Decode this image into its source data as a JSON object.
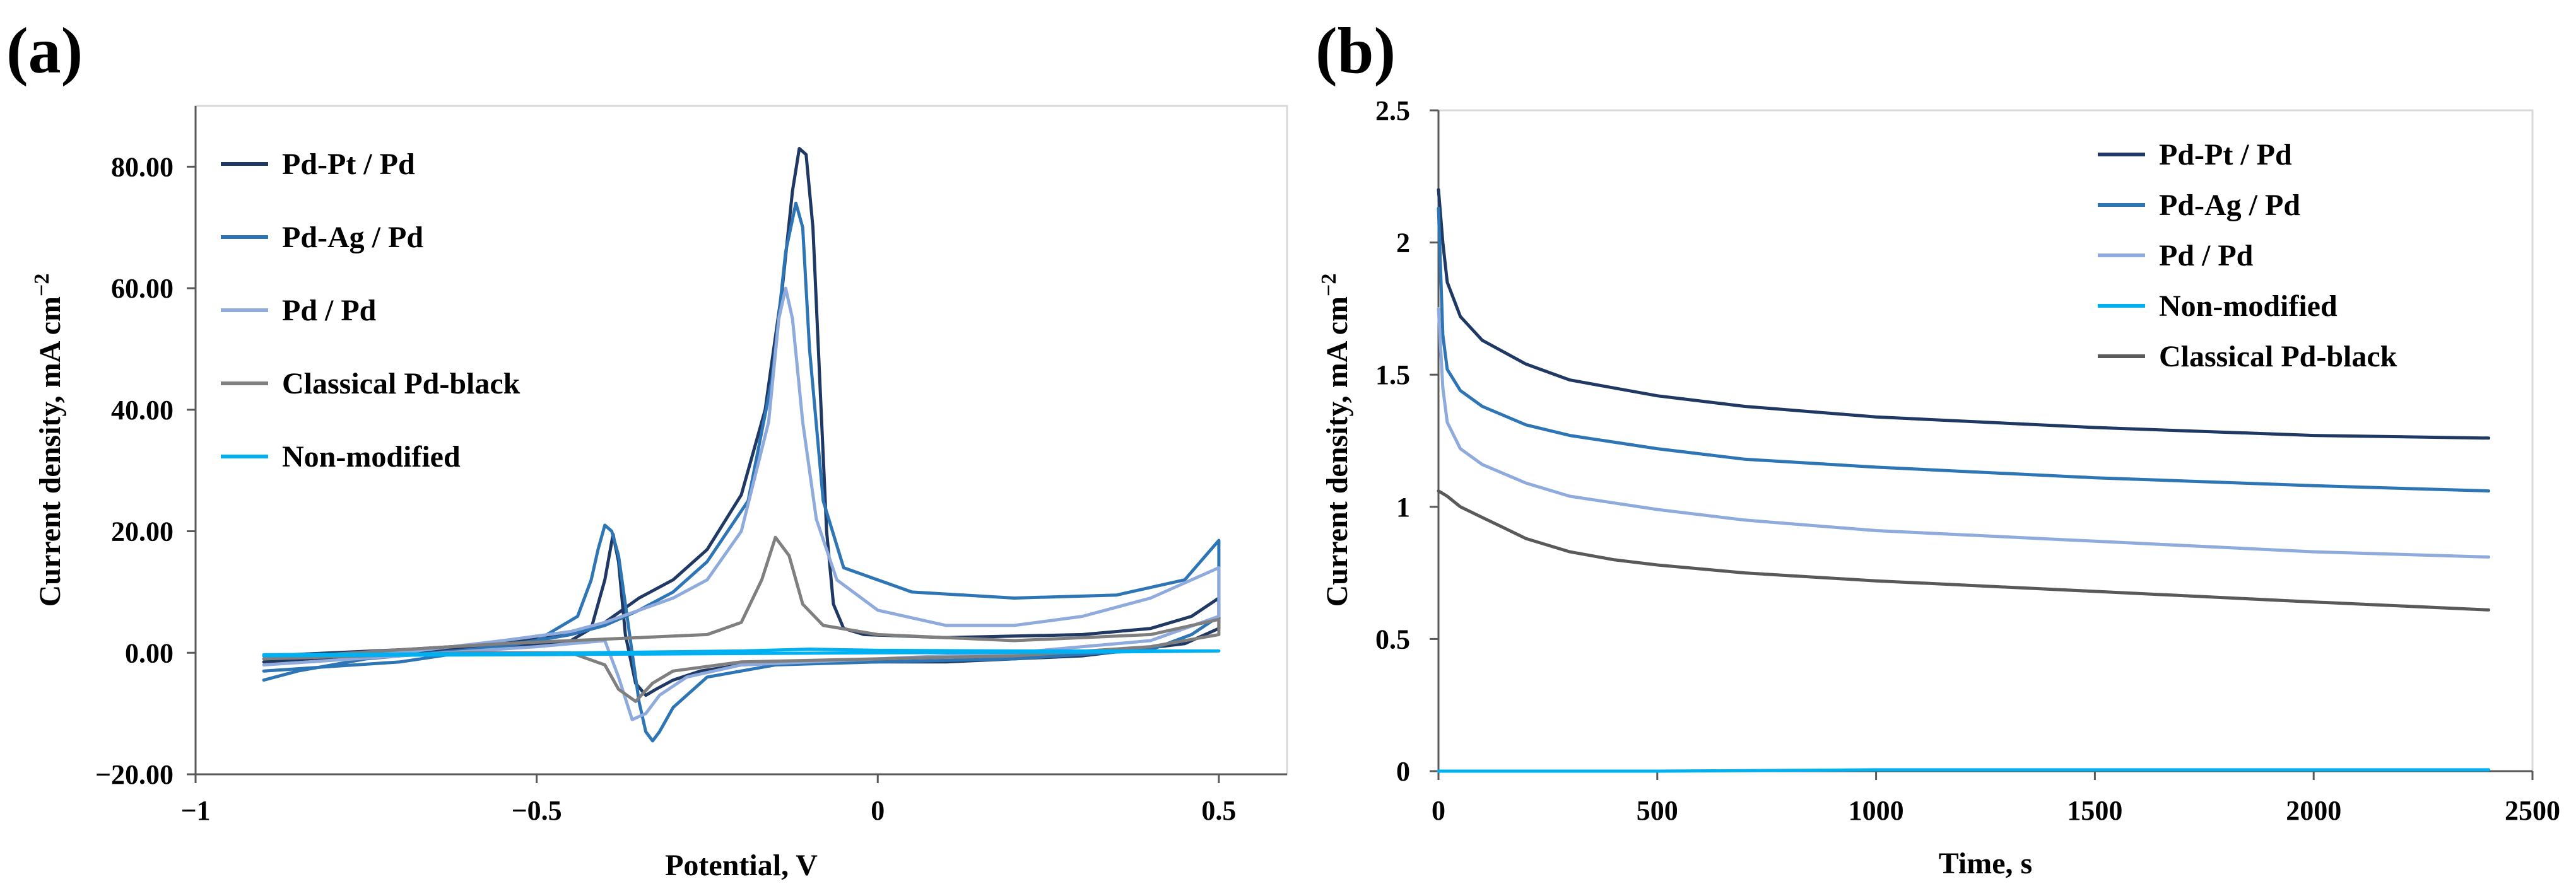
{
  "chart_data": [
    {
      "panel_label": "(a)",
      "type": "line",
      "xlabel": "Potential, V",
      "ylabel_main": "Current density, mA cm",
      "ylabel_sup": "−2",
      "xlim": [
        -1,
        0.6
      ],
      "ylim": [
        -20,
        90
      ],
      "xticks": [
        -1,
        -0.5,
        0,
        0.5
      ],
      "xtick_labels": [
        "−1",
        "−0.5",
        "0",
        "0.5"
      ],
      "yticks": [
        -20,
        0,
        20,
        40,
        60,
        80
      ],
      "ytick_labels": [
        "−20.00",
        "0.00",
        "20.00",
        "40.00",
        "60.00",
        "80.00"
      ],
      "grid": false,
      "legend_position": "top-left",
      "series": [
        {
          "name": "Pd-Pt / Pd",
          "color": "#1f3864",
          "points": [
            [
              -0.9,
              -0.5
            ],
            [
              -0.7,
              0.5
            ],
            [
              -0.55,
              1.5
            ],
            [
              -0.45,
              3
            ],
            [
              -0.4,
              5
            ],
            [
              -0.375,
              7
            ],
            [
              -0.35,
              9
            ],
            [
              -0.3,
              12
            ],
            [
              -0.25,
              17
            ],
            [
              -0.2,
              26
            ],
            [
              -0.165,
              40
            ],
            [
              -0.14,
              60
            ],
            [
              -0.125,
              76
            ],
            [
              -0.115,
              83
            ],
            [
              -0.105,
              82
            ],
            [
              -0.095,
              70
            ],
            [
              -0.085,
              45
            ],
            [
              -0.075,
              20
            ],
            [
              -0.065,
              8
            ],
            [
              -0.05,
              4
            ],
            [
              -0.02,
              3
            ],
            [
              0.1,
              2.5
            ],
            [
              0.3,
              3
            ],
            [
              0.4,
              4
            ],
            [
              0.46,
              6
            ],
            [
              0.5,
              9
            ],
            [
              0.5,
              4
            ],
            [
              0.45,
              1.5
            ],
            [
              0.3,
              -0.5
            ],
            [
              0.1,
              -1.5
            ],
            [
              -0.1,
              -1.5
            ],
            [
              -0.2,
              -2
            ],
            [
              -0.26,
              -3
            ],
            [
              -0.3,
              -4.5
            ],
            [
              -0.325,
              -6
            ],
            [
              -0.34,
              -7
            ],
            [
              -0.355,
              -5
            ],
            [
              -0.37,
              3
            ],
            [
              -0.38,
              15
            ],
            [
              -0.388,
              19.5
            ],
            [
              -0.4,
              12
            ],
            [
              -0.42,
              4
            ],
            [
              -0.45,
              2
            ],
            [
              -0.55,
              1
            ],
            [
              -0.7,
              0
            ],
            [
              -0.9,
              -1.5
            ]
          ]
        },
        {
          "name": "Pd-Ag / Pd",
          "color": "#2e75b6",
          "points": [
            [
              -0.9,
              -4.5
            ],
            [
              -0.85,
              -3
            ],
            [
              -0.75,
              -1
            ],
            [
              -0.6,
              0.5
            ],
            [
              -0.5,
              2
            ],
            [
              -0.44,
              6
            ],
            [
              -0.42,
              12
            ],
            [
              -0.41,
              17
            ],
            [
              -0.4,
              21
            ],
            [
              -0.39,
              20
            ],
            [
              -0.38,
              16
            ],
            [
              -0.37,
              8
            ],
            [
              -0.36,
              0
            ],
            [
              -0.35,
              -8
            ],
            [
              -0.34,
              -13
            ],
            [
              -0.33,
              -14.5
            ],
            [
              -0.32,
              -13
            ],
            [
              -0.3,
              -9
            ],
            [
              -0.25,
              -4
            ],
            [
              -0.15,
              -2
            ],
            [
              0,
              -1.5
            ],
            [
              0.2,
              -1
            ],
            [
              0.4,
              0.5
            ],
            [
              0.46,
              3
            ],
            [
              0.5,
              6
            ],
            [
              0.5,
              18.5
            ],
            [
              0.45,
              12
            ],
            [
              0.35,
              9.5
            ],
            [
              0.2,
              9
            ],
            [
              0.05,
              10
            ],
            [
              -0.05,
              14
            ],
            [
              -0.08,
              25
            ],
            [
              -0.1,
              50
            ],
            [
              -0.11,
              70
            ],
            [
              -0.12,
              74
            ],
            [
              -0.135,
              66
            ],
            [
              -0.155,
              45
            ],
            [
              -0.19,
              25
            ],
            [
              -0.25,
              15
            ],
            [
              -0.3,
              10
            ],
            [
              -0.35,
              7
            ],
            [
              -0.4,
              4.5
            ],
            [
              -0.45,
              3
            ],
            [
              -0.55,
              1
            ],
            [
              -0.7,
              -1.5
            ],
            [
              -0.9,
              -3
            ]
          ]
        },
        {
          "name": "Pd / Pd",
          "color": "#8faadc",
          "points": [
            [
              -0.9,
              -1
            ],
            [
              -0.7,
              0
            ],
            [
              -0.55,
              2
            ],
            [
              -0.45,
              3.5
            ],
            [
              -0.4,
              5
            ],
            [
              -0.35,
              7
            ],
            [
              -0.3,
              9
            ],
            [
              -0.25,
              12
            ],
            [
              -0.2,
              20
            ],
            [
              -0.16,
              38
            ],
            [
              -0.145,
              55
            ],
            [
              -0.135,
              60
            ],
            [
              -0.125,
              55
            ],
            [
              -0.11,
              38
            ],
            [
              -0.09,
              22
            ],
            [
              -0.06,
              12
            ],
            [
              0,
              7
            ],
            [
              0.1,
              4.5
            ],
            [
              0.2,
              4.5
            ],
            [
              0.3,
              6
            ],
            [
              0.4,
              9
            ],
            [
              0.46,
              12
            ],
            [
              0.5,
              14
            ],
            [
              0.5,
              6
            ],
            [
              0.4,
              2
            ],
            [
              0.2,
              0
            ],
            [
              0,
              -1
            ],
            [
              -0.2,
              -2
            ],
            [
              -0.28,
              -4
            ],
            [
              -0.32,
              -7
            ],
            [
              -0.34,
              -10
            ],
            [
              -0.36,
              -11
            ],
            [
              -0.38,
              -4
            ],
            [
              -0.4,
              2
            ],
            [
              -0.5,
              1
            ],
            [
              -0.7,
              -0.5
            ],
            [
              -0.9,
              -2
            ]
          ]
        },
        {
          "name": "Classical Pd-black",
          "color": "#7f7f7f",
          "points": [
            [
              -0.9,
              -1
            ],
            [
              -0.7,
              0.5
            ],
            [
              -0.55,
              1.5
            ],
            [
              -0.45,
              2
            ],
            [
              -0.35,
              2.5
            ],
            [
              -0.25,
              3
            ],
            [
              -0.2,
              5
            ],
            [
              -0.17,
              12
            ],
            [
              -0.15,
              19
            ],
            [
              -0.13,
              16
            ],
            [
              -0.11,
              8
            ],
            [
              -0.08,
              4.5
            ],
            [
              0,
              3
            ],
            [
              0.2,
              2
            ],
            [
              0.4,
              3
            ],
            [
              0.5,
              5.5
            ],
            [
              0.5,
              3
            ],
            [
              0.4,
              1
            ],
            [
              0.2,
              -0.5
            ],
            [
              0,
              -1
            ],
            [
              -0.2,
              -1.5
            ],
            [
              -0.3,
              -3
            ],
            [
              -0.33,
              -5
            ],
            [
              -0.355,
              -8
            ],
            [
              -0.38,
              -6
            ],
            [
              -0.4,
              -2
            ],
            [
              -0.45,
              0
            ],
            [
              -0.6,
              0
            ],
            [
              -0.75,
              -0.5
            ],
            [
              -0.9,
              -1
            ]
          ]
        },
        {
          "name": "Non-modified",
          "color": "#00b0f0",
          "points": [
            [
              -0.9,
              -0.3
            ],
            [
              -0.5,
              -0.1
            ],
            [
              -0.2,
              0.3
            ],
            [
              -0.1,
              0.6
            ],
            [
              0,
              0.4
            ],
            [
              0.2,
              0.3
            ],
            [
              0.5,
              0.3
            ],
            [
              0.3,
              0.1
            ],
            [
              0,
              0
            ],
            [
              -0.5,
              -0.3
            ],
            [
              -0.9,
              -0.5
            ]
          ]
        }
      ]
    },
    {
      "panel_label": "(b)",
      "type": "line",
      "xlabel": "Time, s",
      "ylabel_main": "Current density, mA cm",
      "ylabel_sup": "−2",
      "xlim": [
        0,
        2500
      ],
      "ylim": [
        0,
        2.5
      ],
      "xticks": [
        0,
        500,
        1000,
        1500,
        2000,
        2500
      ],
      "xtick_labels": [
        "0",
        "500",
        "1000",
        "1500",
        "2000",
        "2500"
      ],
      "yticks": [
        0,
        0.5,
        1,
        1.5,
        2,
        2.5
      ],
      "ytick_labels": [
        "0",
        "0.5",
        "1",
        "1.5",
        "2",
        "2.5"
      ],
      "grid": false,
      "legend_position": "top-right",
      "series": [
        {
          "name": "Pd-Pt / Pd",
          "color": "#1f3864",
          "points": [
            [
              0,
              2.2
            ],
            [
              10,
              2.0
            ],
            [
              20,
              1.85
            ],
            [
              50,
              1.72
            ],
            [
              100,
              1.63
            ],
            [
              200,
              1.54
            ],
            [
              300,
              1.48
            ],
            [
              500,
              1.42
            ],
            [
              700,
              1.38
            ],
            [
              1000,
              1.34
            ],
            [
              1500,
              1.3
            ],
            [
              2000,
              1.27
            ],
            [
              2400,
              1.26
            ]
          ]
        },
        {
          "name": "Pd-Ag / Pd",
          "color": "#2e75b6",
          "points": [
            [
              0,
              2.13
            ],
            [
              10,
              1.65
            ],
            [
              20,
              1.52
            ],
            [
              50,
              1.44
            ],
            [
              100,
              1.38
            ],
            [
              200,
              1.31
            ],
            [
              300,
              1.27
            ],
            [
              500,
              1.22
            ],
            [
              700,
              1.18
            ],
            [
              1000,
              1.15
            ],
            [
              1500,
              1.11
            ],
            [
              2000,
              1.08
            ],
            [
              2400,
              1.06
            ]
          ]
        },
        {
          "name": "Pd / Pd",
          "color": "#8faadc",
          "points": [
            [
              0,
              1.75
            ],
            [
              10,
              1.45
            ],
            [
              20,
              1.32
            ],
            [
              50,
              1.22
            ],
            [
              100,
              1.16
            ],
            [
              200,
              1.09
            ],
            [
              300,
              1.04
            ],
            [
              500,
              0.99
            ],
            [
              700,
              0.95
            ],
            [
              1000,
              0.91
            ],
            [
              1500,
              0.87
            ],
            [
              2000,
              0.83
            ],
            [
              2400,
              0.81
            ]
          ]
        },
        {
          "name": "Non-modified",
          "color": "#00b0f0",
          "points": [
            [
              0,
              0.0
            ],
            [
              500,
              0.0
            ],
            [
              1000,
              0.005
            ],
            [
              1500,
              0.005
            ],
            [
              2000,
              0.005
            ],
            [
              2400,
              0.005
            ]
          ]
        },
        {
          "name": "Classical Pd-black",
          "color": "#595959",
          "points": [
            [
              0,
              1.06
            ],
            [
              20,
              1.04
            ],
            [
              50,
              1.0
            ],
            [
              100,
              0.96
            ],
            [
              150,
              0.92
            ],
            [
              200,
              0.88
            ],
            [
              300,
              0.83
            ],
            [
              400,
              0.8
            ],
            [
              500,
              0.78
            ],
            [
              700,
              0.75
            ],
            [
              1000,
              0.72
            ],
            [
              1500,
              0.68
            ],
            [
              2000,
              0.64
            ],
            [
              2400,
              0.61
            ]
          ]
        }
      ]
    }
  ]
}
